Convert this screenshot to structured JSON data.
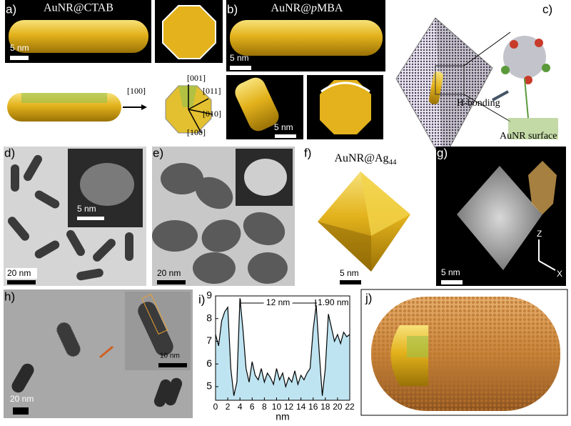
{
  "panels": {
    "a": {
      "label": "a)",
      "title": "AuNR@CTAB",
      "scale": "5 nm",
      "directions": [
        "[100]",
        "[001]",
        "[011]",
        "[010]",
        "[100]"
      ]
    },
    "b": {
      "label": "b)",
      "title_parts": [
        "AuNR@",
        "p",
        "MBA"
      ],
      "scales": [
        "5 nm",
        "5 nm"
      ]
    },
    "c": {
      "label": "c)",
      "annotations": [
        "H-bonding",
        "AuNR surface"
      ]
    },
    "d": {
      "label": "d)",
      "inset_scale": "5 nm",
      "scale": "20 nm"
    },
    "e": {
      "label": "e)",
      "scale": "20 nm"
    },
    "f": {
      "label": "f)",
      "title": "AuNR@Ag",
      "title_sub": "44",
      "scale": "5 nm"
    },
    "g": {
      "label": "g)",
      "scale": "5 nm",
      "axes": [
        "Z",
        "X"
      ]
    },
    "h": {
      "label": "h)",
      "inset_scale": "10 nm",
      "scale": "20 nm"
    },
    "i": {
      "label": "i)"
    },
    "j": {
      "label": "j)"
    }
  },
  "chart_data": {
    "type": "line",
    "x_label": "nm",
    "x": [
      0,
      0.5,
      1,
      1.5,
      2,
      2.5,
      3,
      3.5,
      4,
      4.5,
      5,
      5.5,
      6,
      6.5,
      7,
      7.5,
      8,
      8.5,
      9,
      9.5,
      10,
      10.5,
      11,
      11.5,
      12,
      12.5,
      13,
      13.5,
      14,
      14.5,
      15,
      15.5,
      16,
      16.5,
      17,
      17.5,
      18,
      18.5,
      19,
      19.5,
      20,
      20.5,
      21,
      21.5,
      22
    ],
    "series": [
      {
        "color": "#000000",
        "fill": "#bfe4f1",
        "values": [
          7.3,
          6.8,
          7.9,
          8.3,
          8.5,
          5.8,
          4.6,
          5.2,
          8.9,
          7.5,
          5.8,
          5.2,
          6.1,
          5.5,
          5.3,
          5.8,
          5.2,
          5.6,
          5.4,
          5.1,
          5.8,
          5.3,
          5.6,
          5.0,
          5.4,
          5.2,
          5.7,
          5.1,
          5.5,
          5.3,
          5.6,
          5.8,
          7.5,
          8.6,
          6.5,
          4.6,
          5.8,
          8.2,
          7.6,
          7.0,
          7.3,
          6.9,
          7.4,
          7.2,
          7.3
        ]
      }
    ],
    "annotations": [
      "12 nm",
      "1.90 nm"
    ],
    "xlim": [
      0,
      22
    ],
    "xticks": [
      0,
      2,
      4,
      6,
      8,
      10,
      12,
      14,
      16,
      18,
      20,
      22
    ],
    "ylim": [
      4.4,
      9
    ],
    "yticks": [
      5,
      6,
      7,
      8,
      9
    ]
  }
}
